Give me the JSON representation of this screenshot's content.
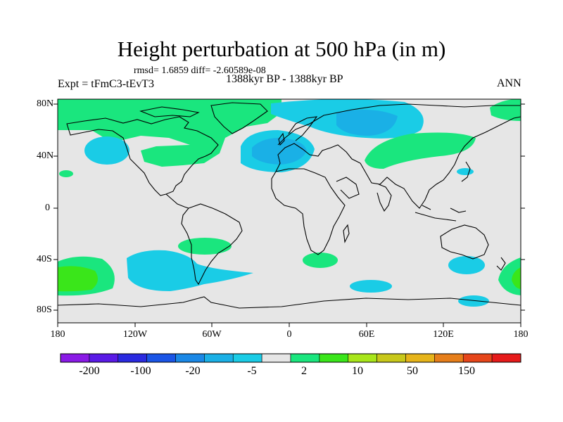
{
  "title": "Height perturbation at 500 hPa (in m)",
  "stats_line": "rmsd= 1.6859 diff= -2.60589e-08",
  "subtitle": "1388kyr BP - 1388kyr BP",
  "left_label": "Expt = tFmC3-tEvT3",
  "right_label": "ANN",
  "y_ticks": [
    "80N",
    "40N",
    "0",
    "40S",
    "80S"
  ],
  "x_ticks": [
    "180",
    "120W",
    "60W",
    "0",
    "60E",
    "120E",
    "180"
  ],
  "colorbar": {
    "labels": [
      "-200",
      "-100",
      "-20",
      "-5",
      "2",
      "10",
      "50",
      "150"
    ],
    "colors": [
      "#8a1ae6",
      "#5a1ae6",
      "#2a2ae0",
      "#1a55e6",
      "#1a88e6",
      "#1ab0e6",
      "#1acce6",
      "#e6e6e6",
      "#1ae67e",
      "#3ae61a",
      "#a8e61a",
      "#c8c81a",
      "#e6b41a",
      "#e67e1a",
      "#e6461a",
      "#e61a1a"
    ]
  },
  "map_colors": {
    "neutral": "#e6e6e6",
    "green": "#1ae67e",
    "bright_green": "#3ae61a",
    "light_blue": "#1acce6",
    "mid_blue": "#1ab0e6"
  }
}
